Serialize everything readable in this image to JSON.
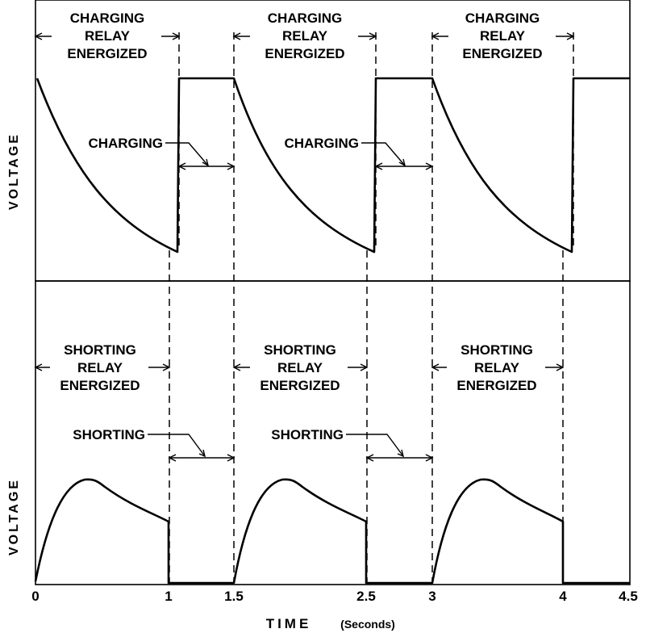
{
  "x_axis": {
    "title": "TIME",
    "unit": "(Seconds)",
    "ticks": [
      "0",
      "1",
      "1.5",
      "2.5",
      "3",
      "4",
      "4.5"
    ]
  },
  "y_axis_label": "VOLTAGE",
  "top_panel": {
    "relay_label": [
      "CHARGING",
      "RELAY",
      "ENERGIZED"
    ],
    "interval_label": "CHARGING"
  },
  "bottom_panel": {
    "relay_label": [
      "SHORTING",
      "RELAY",
      "ENERGIZED"
    ],
    "interval_label": "SHORTING"
  }
}
